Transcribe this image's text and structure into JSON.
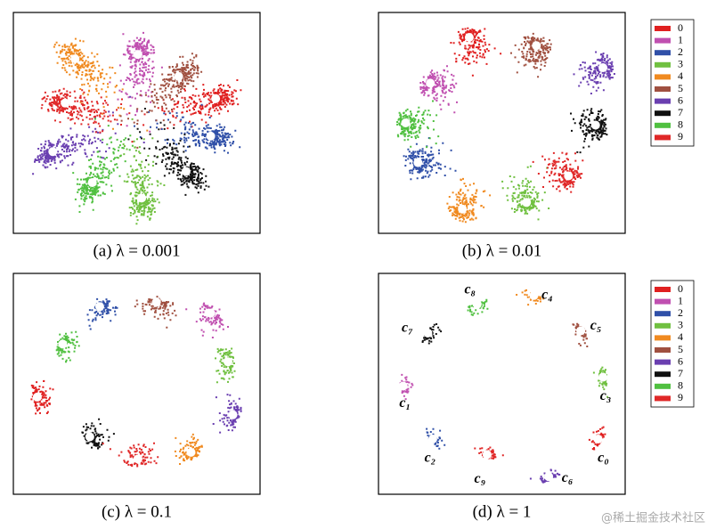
{
  "chart_data": [
    {
      "type": "scatter",
      "title": "(a)  λ = 0.001",
      "xlim": [
        0,
        100
      ],
      "ylim": [
        0,
        100
      ],
      "series": [
        {
          "name": "0",
          "color": "#e02020",
          "x": [
            82
          ],
          "y": [
            61
          ]
        },
        {
          "name": "1",
          "color": "#c050b0",
          "x": [
            50.5
          ],
          "y": [
            81
          ]
        },
        {
          "name": "2",
          "color": "#3050a8",
          "x": [
            80
          ],
          "y": [
            44
          ]
        },
        {
          "name": "3",
          "color": "#70c040",
          "x": [
            52
          ],
          "y": [
            16
          ]
        },
        {
          "name": "4",
          "color": "#f08a20",
          "x": [
            25
          ],
          "y": [
            79
          ]
        },
        {
          "name": "5",
          "color": "#a05040",
          "x": [
            67
          ],
          "y": [
            71
          ]
        },
        {
          "name": "6",
          "color": "#6a3fb0",
          "x": [
            16
          ],
          "y": [
            37
          ]
        },
        {
          "name": "7",
          "color": "#101010",
          "x": [
            70
          ],
          "y": [
            28
          ]
        },
        {
          "name": "8",
          "color": "#50c040",
          "x": [
            32
          ],
          "y": [
            23
          ]
        },
        {
          "name": "9",
          "color": "#e02828",
          "x": [
            21
          ],
          "y": [
            59
          ]
        }
      ]
    },
    {
      "type": "scatter",
      "title": "(b)  λ = 0.01",
      "xlim": [
        0,
        100
      ],
      "ylim": [
        0,
        100
      ],
      "legend": "right",
      "series": [
        {
          "name": "0",
          "color": "#e02020",
          "x": [
            36.8
          ],
          "y": [
            88.7
          ]
        },
        {
          "name": "1",
          "color": "#c050b0",
          "x": [
            21
          ],
          "y": [
            68
          ]
        },
        {
          "name": "2",
          "color": "#3050a8",
          "x": [
            16
          ],
          "y": [
            32
          ]
        },
        {
          "name": "3",
          "color": "#70c040",
          "x": [
            60
          ],
          "y": [
            14
          ]
        },
        {
          "name": "4",
          "color": "#f08a20",
          "x": [
            34
          ],
          "y": [
            11
          ]
        },
        {
          "name": "5",
          "color": "#a05040",
          "x": [
            64
          ],
          "y": [
            85
          ]
        },
        {
          "name": "6",
          "color": "#6a3fb0",
          "x": [
            91
          ],
          "y": [
            75
          ]
        },
        {
          "name": "7",
          "color": "#101010",
          "x": [
            88
          ],
          "y": [
            49
          ]
        },
        {
          "name": "8",
          "color": "#50c040",
          "x": [
            11
          ],
          "y": [
            50
          ]
        },
        {
          "name": "9",
          "color": "#e02828",
          "x": [
            77
          ],
          "y": [
            26
          ]
        }
      ]
    },
    {
      "type": "scatter",
      "title": "(c)  λ = 0.1",
      "xlim": [
        0,
        100
      ],
      "ylim": [
        0,
        100
      ],
      "series": [
        {
          "name": "0",
          "color": "#e02020",
          "x": [
            9.7
          ],
          "y": [
            44
          ]
        },
        {
          "name": "1",
          "color": "#c050b0",
          "x": [
            80
          ],
          "y": [
            82
          ]
        },
        {
          "name": "2",
          "color": "#3050a8",
          "x": [
            35
          ],
          "y": [
            85
          ]
        },
        {
          "name": "3",
          "color": "#70c040",
          "x": [
            87
          ],
          "y": [
            60
          ]
        },
        {
          "name": "4",
          "color": "#f08a20",
          "x": [
            72
          ],
          "y": [
            19
          ]
        },
        {
          "name": "5",
          "color": "#a05040",
          "x": [
            58
          ],
          "y": [
            87
          ]
        },
        {
          "name": "6",
          "color": "#6a3fb0",
          "x": [
            89
          ],
          "y": [
            36
          ]
        },
        {
          "name": "7",
          "color": "#101010",
          "x": [
            31
          ],
          "y": [
            26
          ]
        },
        {
          "name": "8",
          "color": "#50c040",
          "x": [
            20
          ],
          "y": [
            68
          ]
        },
        {
          "name": "9",
          "color": "#e02828",
          "x": [
            50.5
          ],
          "y": [
            16
          ]
        }
      ]
    },
    {
      "type": "scatter",
      "title": "(d)  λ = 1",
      "xlim": [
        0,
        100
      ],
      "ylim": [
        0,
        100
      ],
      "legend": "right",
      "annotations": [
        "c₀",
        "c₁",
        "c₂",
        "c₃",
        "c₄",
        "c₅",
        "c₆",
        "c₇",
        "c₈",
        "c₉"
      ],
      "series": [
        {
          "name": "0",
          "color": "#e02020",
          "x": [
            89
          ],
          "y": [
            25
          ]
        },
        {
          "name": "1",
          "color": "#c050b0",
          "x": [
            10
          ],
          "y": [
            49
          ]
        },
        {
          "name": "2",
          "color": "#3050a8",
          "x": [
            22
          ],
          "y": [
            25
          ]
        },
        {
          "name": "3",
          "color": "#70c040",
          "x": [
            91
          ],
          "y": [
            53
          ]
        },
        {
          "name": "4",
          "color": "#f08a20",
          "x": [
            63
          ],
          "y": [
            90
          ]
        },
        {
          "name": "5",
          "color": "#a05040",
          "x": [
            82
          ],
          "y": [
            74
          ]
        },
        {
          "name": "6",
          "color": "#6a3fb0",
          "x": [
            69
          ],
          "y": [
            8
          ]
        },
        {
          "name": "7",
          "color": "#101010",
          "x": [
            20
          ],
          "y": [
            73
          ]
        },
        {
          "name": "8",
          "color": "#50c040",
          "x": [
            40
          ],
          "y": [
            86
          ]
        },
        {
          "name": "9",
          "color": "#e02828",
          "x": [
            44
          ],
          "y": [
            18
          ]
        }
      ]
    }
  ],
  "watermark": "@稀土掘金技术社区"
}
